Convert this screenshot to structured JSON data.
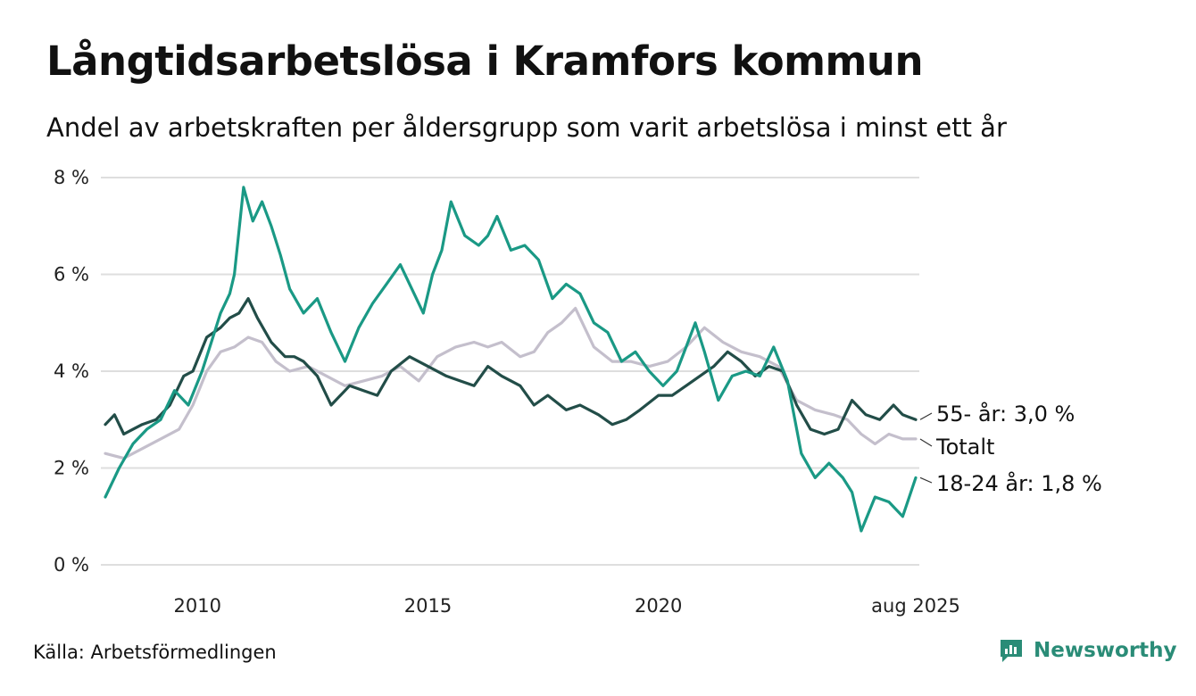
{
  "title": "Långtidsarbetslösa i Kramfors kommun",
  "subtitle": "Andel av arbetskraften per åldersgrupp som varit arbetslösa i minst ett år",
  "source": "Källa: Arbetsförmedlingen",
  "brand": {
    "name": "Newsworthy",
    "icon": "newsworthy-logo-icon",
    "color": "#2a8c77"
  },
  "chart_data": {
    "type": "line",
    "x_range": [
      2008.0,
      2025.583
    ],
    "ylim": [
      0,
      8
    ],
    "y_ticks": [
      0,
      2,
      4,
      6,
      8
    ],
    "y_tick_labels": [
      "0 %",
      "2 %",
      "4 %",
      "6 %",
      "8 %"
    ],
    "x_ticks": [
      2010,
      2015,
      2020,
      2025.583
    ],
    "x_tick_labels": [
      "2010",
      "2015",
      "2020",
      "aug 2025"
    ],
    "grid": true,
    "series": [
      {
        "name": "Totalt",
        "label": "Totalt",
        "color": "#c4bfcc",
        "x": [
          2008.0,
          2008.4,
          2008.8,
          2009.2,
          2009.6,
          2009.9,
          2010.2,
          2010.5,
          2010.8,
          2011.1,
          2011.4,
          2011.7,
          2012.0,
          2012.4,
          2012.8,
          2013.2,
          2013.6,
          2014.0,
          2014.4,
          2014.8,
          2015.2,
          2015.6,
          2016.0,
          2016.3,
          2016.6,
          2017.0,
          2017.3,
          2017.6,
          2017.9,
          2018.2,
          2018.6,
          2019.0,
          2019.4,
          2019.8,
          2020.2,
          2020.6,
          2021.0,
          2021.4,
          2021.8,
          2022.2,
          2022.6,
          2023.0,
          2023.4,
          2023.8,
          2024.1,
          2024.4,
          2024.7,
          2025.0,
          2025.3,
          2025.583
        ],
        "y": [
          2.3,
          2.2,
          2.4,
          2.6,
          2.8,
          3.3,
          4.0,
          4.4,
          4.5,
          4.7,
          4.6,
          4.2,
          4.0,
          4.1,
          3.9,
          3.7,
          3.8,
          3.9,
          4.1,
          3.8,
          4.3,
          4.5,
          4.6,
          4.5,
          4.6,
          4.3,
          4.4,
          4.8,
          5.0,
          5.3,
          4.5,
          4.2,
          4.2,
          4.1,
          4.2,
          4.5,
          4.9,
          4.6,
          4.4,
          4.3,
          4.1,
          3.4,
          3.2,
          3.1,
          3.0,
          2.7,
          2.5,
          2.7,
          2.6,
          2.6
        ]
      },
      {
        "name": "55- år",
        "label": "55- år: 3,0 %",
        "color": "#224d48",
        "x": [
          2008.0,
          2008.2,
          2008.4,
          2008.6,
          2008.8,
          2009.1,
          2009.4,
          2009.7,
          2009.9,
          2010.2,
          2010.5,
          2010.7,
          2010.9,
          2011.1,
          2011.3,
          2011.6,
          2011.9,
          2012.1,
          2012.3,
          2012.6,
          2012.9,
          2013.3,
          2013.6,
          2013.9,
          2014.2,
          2014.6,
          2015.0,
          2015.4,
          2015.7,
          2016.0,
          2016.3,
          2016.6,
          2017.0,
          2017.3,
          2017.6,
          2018.0,
          2018.3,
          2018.7,
          2019.0,
          2019.3,
          2019.6,
          2020.0,
          2020.3,
          2020.6,
          2020.9,
          2021.2,
          2021.5,
          2021.8,
          2022.1,
          2022.4,
          2022.7,
          2023.0,
          2023.3,
          2023.6,
          2023.9,
          2024.2,
          2024.5,
          2024.8,
          2025.1,
          2025.3,
          2025.583
        ],
        "y": [
          2.9,
          3.1,
          2.7,
          2.8,
          2.9,
          3.0,
          3.3,
          3.9,
          4.0,
          4.7,
          4.9,
          5.1,
          5.2,
          5.5,
          5.1,
          4.6,
          4.3,
          4.3,
          4.2,
          3.9,
          3.3,
          3.7,
          3.6,
          3.5,
          4.0,
          4.3,
          4.1,
          3.9,
          3.8,
          3.7,
          4.1,
          3.9,
          3.7,
          3.3,
          3.5,
          3.2,
          3.3,
          3.1,
          2.9,
          3.0,
          3.2,
          3.5,
          3.5,
          3.7,
          3.9,
          4.1,
          4.4,
          4.2,
          3.9,
          4.1,
          4.0,
          3.3,
          2.8,
          2.7,
          2.8,
          3.4,
          3.1,
          3.0,
          3.3,
          3.1,
          3.0
        ]
      },
      {
        "name": "18-24 år",
        "label": "18-24 år: 1,8 %",
        "color": "#1a9985",
        "x": [
          2008.0,
          2008.3,
          2008.6,
          2008.9,
          2009.2,
          2009.5,
          2009.8,
          2010.1,
          2010.3,
          2010.5,
          2010.7,
          2010.8,
          2011.0,
          2011.2,
          2011.4,
          2011.6,
          2011.8,
          2012.0,
          2012.3,
          2012.6,
          2012.9,
          2013.2,
          2013.5,
          2013.8,
          2014.1,
          2014.4,
          2014.7,
          2014.9,
          2015.1,
          2015.3,
          2015.5,
          2015.8,
          2016.1,
          2016.3,
          2016.5,
          2016.8,
          2017.1,
          2017.4,
          2017.7,
          2018.0,
          2018.3,
          2018.6,
          2018.9,
          2019.2,
          2019.5,
          2019.8,
          2020.1,
          2020.4,
          2020.6,
          2020.8,
          2021.0,
          2021.3,
          2021.6,
          2021.9,
          2022.2,
          2022.5,
          2022.8,
          2023.1,
          2023.4,
          2023.7,
          2024.0,
          2024.2,
          2024.4,
          2024.7,
          2025.0,
          2025.3,
          2025.583
        ],
        "y": [
          1.4,
          2.0,
          2.5,
          2.8,
          3.0,
          3.6,
          3.3,
          4.0,
          4.6,
          5.2,
          5.6,
          6.0,
          7.8,
          7.1,
          7.5,
          7.0,
          6.4,
          5.7,
          5.2,
          5.5,
          4.8,
          4.2,
          4.9,
          5.4,
          5.8,
          6.2,
          5.6,
          5.2,
          6.0,
          6.5,
          7.5,
          6.8,
          6.6,
          6.8,
          7.2,
          6.5,
          6.6,
          6.3,
          5.5,
          5.8,
          5.6,
          5.0,
          4.8,
          4.2,
          4.4,
          4.0,
          3.7,
          4.0,
          4.5,
          5.0,
          4.4,
          3.4,
          3.9,
          4.0,
          3.9,
          4.5,
          3.8,
          2.3,
          1.8,
          2.1,
          1.8,
          1.5,
          0.7,
          1.4,
          1.3,
          1.0,
          1.8
        ]
      }
    ]
  }
}
